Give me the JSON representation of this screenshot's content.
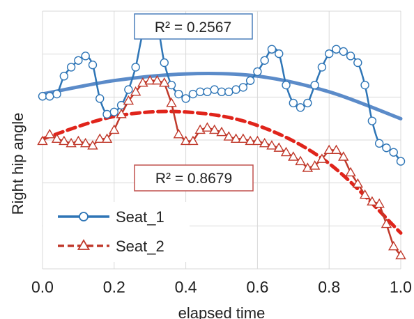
{
  "chart_data": {
    "type": "line",
    "title": "",
    "xlabel": "elapsed time",
    "ylabel": "Right hip angle",
    "xlim": [
      0,
      1
    ],
    "ylim": [
      0,
      1.15
    ],
    "x_ticks": [
      "0.0",
      "0.2",
      "0.4",
      "0.6",
      "0.8",
      "1.0"
    ],
    "y_tick_labels_shown": false,
    "grid": {
      "vertical": true,
      "horizontal": true
    },
    "legend_position": "bottom-left",
    "series": [
      {
        "name": "Seat_1",
        "color": "#2E75B6",
        "marker": "circle",
        "line_style": "solid",
        "x": [
          0.0,
          0.02,
          0.04,
          0.06,
          0.08,
          0.1,
          0.12,
          0.14,
          0.16,
          0.18,
          0.2,
          0.22,
          0.24,
          0.26,
          0.28,
          0.3,
          0.32,
          0.34,
          0.36,
          0.38,
          0.4,
          0.42,
          0.44,
          0.46,
          0.48,
          0.5,
          0.52,
          0.54,
          0.56,
          0.58,
          0.6,
          0.62,
          0.64,
          0.66,
          0.68,
          0.7,
          0.72,
          0.74,
          0.76,
          0.78,
          0.8,
          0.82,
          0.84,
          0.86,
          0.88,
          0.9,
          0.92,
          0.94,
          0.96,
          0.98,
          1.0
        ],
        "y": [
          0.77,
          0.77,
          0.78,
          0.86,
          0.9,
          0.93,
          0.95,
          0.91,
          0.76,
          0.69,
          0.7,
          0.73,
          0.8,
          0.9,
          1.05,
          1.08,
          1.09,
          0.92,
          0.82,
          0.78,
          0.76,
          0.78,
          0.79,
          0.79,
          0.8,
          0.79,
          0.79,
          0.8,
          0.81,
          0.84,
          0.88,
          0.93,
          0.98,
          0.96,
          0.82,
          0.74,
          0.72,
          0.74,
          0.82,
          0.9,
          0.96,
          0.98,
          0.97,
          0.95,
          0.92,
          0.82,
          0.66,
          0.56,
          0.54,
          0.52,
          0.48
        ]
      },
      {
        "name": "Seat_2",
        "color": "#C0392B",
        "marker": "triangle",
        "line_style": "dashed",
        "x": [
          0.0,
          0.02,
          0.04,
          0.06,
          0.08,
          0.1,
          0.12,
          0.14,
          0.16,
          0.18,
          0.2,
          0.22,
          0.24,
          0.26,
          0.28,
          0.3,
          0.32,
          0.34,
          0.36,
          0.38,
          0.4,
          0.42,
          0.44,
          0.46,
          0.48,
          0.5,
          0.52,
          0.54,
          0.56,
          0.58,
          0.6,
          0.62,
          0.64,
          0.66,
          0.68,
          0.7,
          0.72,
          0.74,
          0.76,
          0.78,
          0.8,
          0.82,
          0.84,
          0.86,
          0.88,
          0.9,
          0.92,
          0.94,
          0.96,
          0.98,
          1.0
        ],
        "y": [
          0.57,
          0.6,
          0.58,
          0.57,
          0.56,
          0.57,
          0.56,
          0.55,
          0.58,
          0.58,
          0.62,
          0.69,
          0.75,
          0.79,
          0.83,
          0.84,
          0.84,
          0.83,
          0.74,
          0.6,
          0.57,
          0.57,
          0.62,
          0.63,
          0.62,
          0.61,
          0.59,
          0.58,
          0.58,
          0.57,
          0.57,
          0.56,
          0.55,
          0.54,
          0.52,
          0.5,
          0.48,
          0.45,
          0.46,
          0.49,
          0.53,
          0.53,
          0.5,
          0.43,
          0.38,
          0.33,
          0.3,
          0.29,
          0.2,
          0.1,
          0.06
        ]
      }
    ],
    "trendlines": [
      {
        "series": "Seat_1",
        "type": "polynomial",
        "color": "#5B8BC9",
        "line_style": "solid",
        "r2_label": "R² = 0.2567",
        "x": [
          0.0,
          0.2,
          0.4,
          0.6,
          0.8,
          1.0
        ],
        "y": [
          0.78,
          0.84,
          0.87,
          0.86,
          0.79,
          0.67
        ]
      },
      {
        "series": "Seat_2",
        "type": "polynomial",
        "color": "#E0241B",
        "line_style": "dashed",
        "r2_label": "R² = 0.8679",
        "x": [
          0.0,
          0.2,
          0.4,
          0.6,
          0.8,
          1.0
        ],
        "y": [
          0.58,
          0.68,
          0.7,
          0.64,
          0.47,
          0.16
        ]
      }
    ]
  }
}
